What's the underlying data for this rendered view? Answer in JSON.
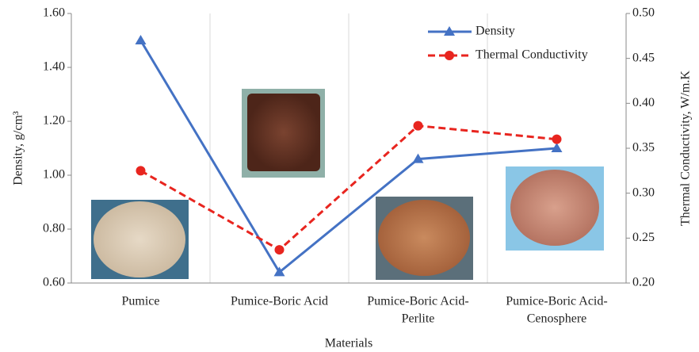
{
  "chart_data": {
    "type": "line",
    "xlabel": "Materials",
    "ylabel": "Density, g/cm³",
    "y2label": "Thermal Conductivity,  W/m.K",
    "categories": [
      [
        "Pumice"
      ],
      [
        "Pumice-Boric Acid"
      ],
      [
        "Pumice-Boric Acid-",
        "Perlite"
      ],
      [
        "Pumice-Boric Acid-",
        "Cenosphere"
      ]
    ],
    "series": [
      {
        "name": "Density",
        "color": "#4472c4",
        "marker": "triangle",
        "line_style": "solid",
        "values": [
          1.5,
          0.64,
          1.06,
          1.1
        ]
      },
      {
        "name": "Thermal Conductivity",
        "color": "#e8251f",
        "marker": "circle",
        "line_style": "dashed",
        "axis": "y2",
        "values": [
          0.325,
          0.237,
          0.375,
          0.36
        ]
      }
    ],
    "ylim": [
      0.6,
      1.6
    ],
    "yticks": [
      {
        "value": 0.6,
        "label": "0.60"
      },
      {
        "value": 0.8,
        "label": "0.80"
      },
      {
        "value": 1.0,
        "label": "1.00"
      },
      {
        "value": 1.2,
        "label": "1.20"
      },
      {
        "value": 1.4,
        "label": "1.40"
      },
      {
        "value": 1.6,
        "label": "1.60"
      }
    ],
    "y2lim": [
      0.2,
      0.5
    ],
    "y2ticks": [
      {
        "value": 0.2,
        "label": "0.20"
      },
      {
        "value": 0.25,
        "label": "0.25"
      },
      {
        "value": 0.3,
        "label": "0.30"
      },
      {
        "value": 0.35,
        "label": "0.35"
      },
      {
        "value": 0.4,
        "label": "0.40"
      },
      {
        "value": 0.45,
        "label": "0.45"
      },
      {
        "value": 0.5,
        "label": "0.50"
      }
    ],
    "grid": true,
    "legend": "upper right"
  }
}
